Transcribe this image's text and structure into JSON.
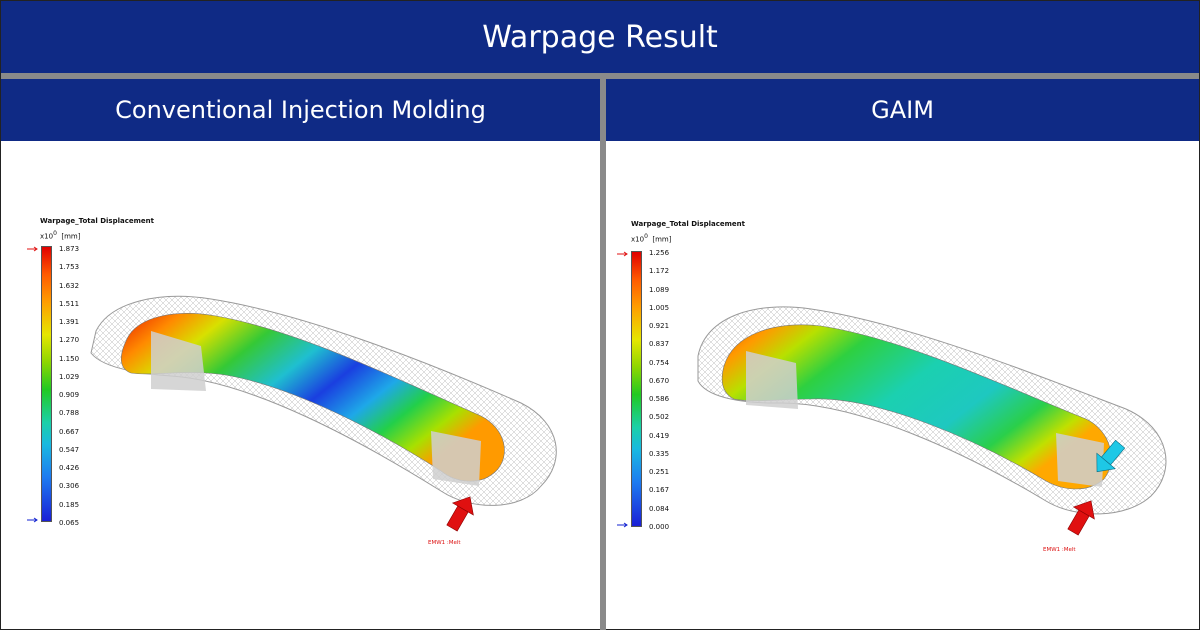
{
  "title": "Warpage Result",
  "left": {
    "heading": "Conventional Injection Molding",
    "legend": {
      "title": "Warpage_Total Displacement",
      "scale": "x10",
      "exponent": "0",
      "unit": "[mm]",
      "values": [
        "1.873",
        "1.753",
        "1.632",
        "1.511",
        "1.391",
        "1.270",
        "1.150",
        "1.029",
        "0.909",
        "0.788",
        "0.667",
        "0.547",
        "0.426",
        "0.306",
        "0.185",
        "0.065"
      ]
    },
    "melt_label": "EMW1 :Melt"
  },
  "right": {
    "heading": "GAIM",
    "legend": {
      "title": "Warpage_Total Displacement",
      "scale": "x10",
      "exponent": "0",
      "unit": "[mm]",
      "values": [
        "1.256",
        "1.172",
        "1.089",
        "1.005",
        "0.921",
        "0.837",
        "0.754",
        "0.670",
        "0.586",
        "0.502",
        "0.419",
        "0.335",
        "0.251",
        "0.167",
        "0.084",
        "0.000"
      ]
    },
    "melt_label": "EMW1 :Melt"
  },
  "colors": {
    "header_blue": "#0f2a85",
    "separator_gray": "#8a8a8a",
    "melt_arrow": "#e01010",
    "gas_arrow": "#1ec8e6"
  }
}
